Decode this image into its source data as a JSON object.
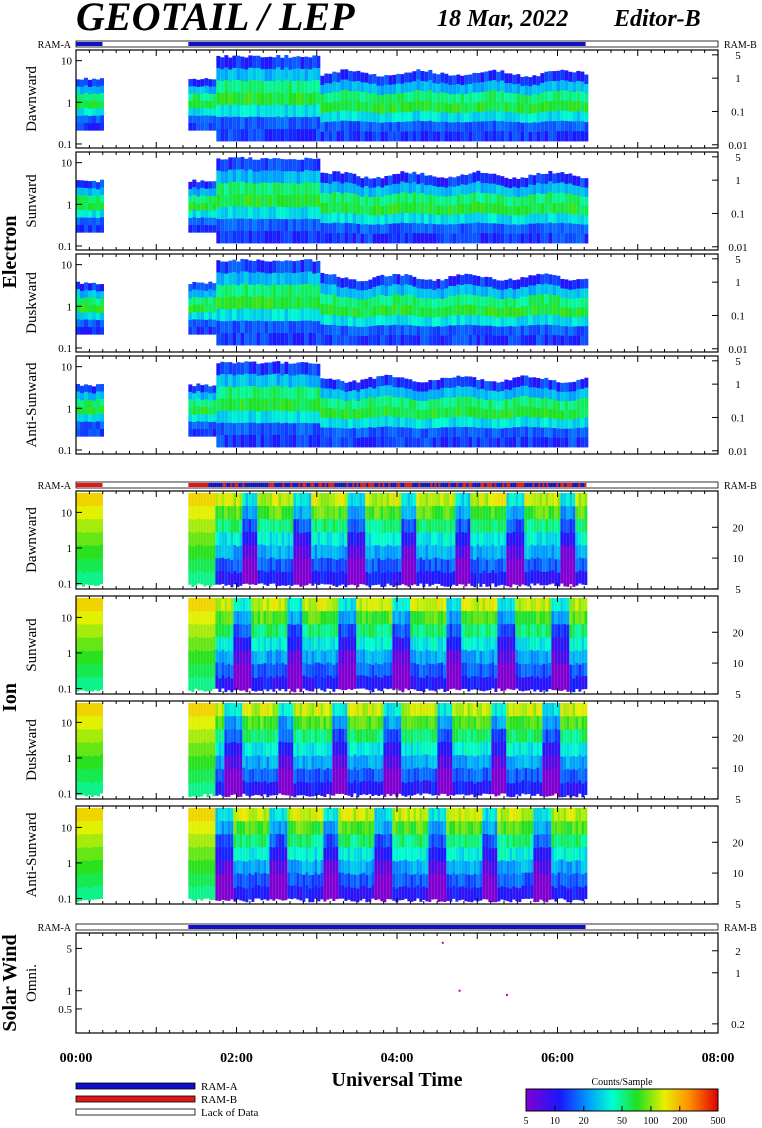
{
  "header": {
    "title": "GEOTAIL / LEP",
    "date": "18 Mar, 2022",
    "editor": "Editor-B"
  },
  "colors": {
    "ram_a": "#1010c8",
    "ram_b": "#e01818",
    "lack_of_data": "#ffffff",
    "point": "#c000c0",
    "frame": "#000000"
  },
  "chart_data": {
    "type": "heatmap",
    "x_axis": {
      "label": "Universal Time",
      "range_hours": [
        0,
        8
      ],
      "tick_labels": [
        "00:00",
        "02:00",
        "04:00",
        "06:00",
        "08:00"
      ],
      "tick_hours": [
        0,
        2,
        4,
        6,
        8
      ],
      "minor_ticks_per_hour": 6
    },
    "data_segments_hours": [
      [
        0.0,
        0.33
      ],
      [
        1.4,
        6.35
      ]
    ],
    "groups": [
      {
        "name": "Electron",
        "mode_bar": {
          "left_label": "RAM-A",
          "right_label": "RAM-B",
          "segments": [
            {
              "start": 0.0,
              "end": 0.33,
              "mode": "ram_a"
            },
            {
              "start": 0.33,
              "end": 1.4,
              "mode": "lack_of_data"
            },
            {
              "start": 1.4,
              "end": 6.35,
              "mode": "ram_a"
            },
            {
              "start": 6.35,
              "end": 8.0,
              "mode": "lack_of_data"
            }
          ]
        },
        "panels": [
          {
            "label": "Dawnward",
            "left_ticks": [
              "10",
              "1",
              "0.1"
            ],
            "left_log": [
              1,
              0,
              -1
            ],
            "left_range": [
              0.08,
              18
            ],
            "right_ticks": [
              "5",
              "1",
              "0.1",
              "0.01"
            ],
            "right_log": [
              0.7,
              0,
              -1,
              -2
            ],
            "right_range": [
              0.008,
              7
            ]
          },
          {
            "label": "Sunward",
            "left_ticks": [
              "10",
              "1",
              "0.1"
            ],
            "left_log": [
              1,
              0,
              -1
            ],
            "left_range": [
              0.08,
              18
            ],
            "right_ticks": [
              "5",
              "1",
              "0.1",
              "0.01"
            ],
            "right_log": [
              0.7,
              0,
              -1,
              -2
            ],
            "right_range": [
              0.008,
              7
            ]
          },
          {
            "label": "Duskward",
            "left_ticks": [
              "10",
              "1",
              "0.1"
            ],
            "left_log": [
              1,
              0,
              -1
            ],
            "left_range": [
              0.08,
              18
            ],
            "right_ticks": [
              "5",
              "1",
              "0.1",
              "0.01"
            ],
            "right_log": [
              0.7,
              0,
              -1,
              -2
            ],
            "right_range": [
              0.008,
              7
            ]
          },
          {
            "label": "Anti-Sunward",
            "left_ticks": [
              "10",
              "1",
              "0.1"
            ],
            "left_log": [
              1,
              0,
              -1
            ],
            "left_range": [
              0.08,
              18
            ],
            "right_ticks": [
              "5",
              "1",
              "0.1",
              "0.01"
            ],
            "right_log": [
              0.7,
              0,
              -1,
              -2
            ],
            "right_range": [
              0.008,
              7
            ]
          }
        ]
      },
      {
        "name": "Ion",
        "mode_bar": {
          "left_label": "RAM-A",
          "right_label": "RAM-B",
          "segments": [
            {
              "start": 0.0,
              "end": 0.33,
              "mode": "ram_b"
            },
            {
              "start": 0.33,
              "end": 1.4,
              "mode": "lack_of_data"
            },
            {
              "start": 1.4,
              "end": 1.65,
              "mode": "ram_b"
            },
            {
              "start": 1.65,
              "end": 6.35,
              "mode": "mixed"
            },
            {
              "start": 6.35,
              "end": 8.0,
              "mode": "lack_of_data"
            }
          ]
        },
        "panels": [
          {
            "label": "Dawnward",
            "left_ticks": [
              "10",
              "1",
              "0.1"
            ],
            "left_log": [
              1,
              0,
              -1
            ],
            "left_range": [
              0.07,
              40
            ],
            "right_ticks": [
              "20",
              "10",
              "5"
            ],
            "right_log": [
              1.3,
              1,
              0.7
            ],
            "right_range": [
              5,
              45
            ]
          },
          {
            "label": "Sunward",
            "left_ticks": [
              "10",
              "1",
              "0.1"
            ],
            "left_log": [
              1,
              0,
              -1
            ],
            "left_range": [
              0.07,
              40
            ],
            "right_ticks": [
              "20",
              "10",
              "5"
            ],
            "right_log": [
              1.3,
              1,
              0.7
            ],
            "right_range": [
              5,
              45
            ]
          },
          {
            "label": "Duskward",
            "left_ticks": [
              "10",
              "1",
              "0.1"
            ],
            "left_log": [
              1,
              0,
              -1
            ],
            "left_range": [
              0.07,
              40
            ],
            "right_ticks": [
              "20",
              "10",
              "5"
            ],
            "right_log": [
              1.3,
              1,
              0.7
            ],
            "right_range": [
              5,
              45
            ]
          },
          {
            "label": "Anti-Sunward",
            "left_ticks": [
              "10",
              "1",
              "0.1"
            ],
            "left_log": [
              1,
              0,
              -1
            ],
            "left_range": [
              0.07,
              40
            ],
            "right_ticks": [
              "20",
              "10",
              "5"
            ],
            "right_log": [
              1.3,
              1,
              0.7
            ],
            "right_range": [
              5,
              45
            ]
          }
        ]
      },
      {
        "name": "Solar Wind",
        "mode_bar": {
          "left_label": "RAM-A",
          "right_label": "RAM-B",
          "segments": [
            {
              "start": 0.0,
              "end": 1.4,
              "mode": "lack_of_data"
            },
            {
              "start": 1.4,
              "end": 6.35,
              "mode": "ram_a"
            },
            {
              "start": 6.35,
              "end": 8.0,
              "mode": "lack_of_data"
            }
          ]
        },
        "panels": [
          {
            "label": "Omni.",
            "left_ticks": [
              "5",
              "1",
              "0.5"
            ],
            "left_log": [
              0.699,
              0,
              -0.301
            ],
            "left_range": [
              0.2,
              9
            ],
            "right_ticks": [
              "2",
              "1",
              "0.2"
            ],
            "right_log": [
              0.301,
              0,
              -0.699
            ],
            "right_range": [
              0.15,
              3.5
            ],
            "points": [
              {
                "x_hours": 4.57,
                "y": 6.2
              },
              {
                "x_hours": 4.78,
                "y": 1.0
              },
              {
                "x_hours": 5.37,
                "y": 0.85
              }
            ]
          }
        ]
      }
    ],
    "legend": {
      "items": [
        {
          "label": "RAM-A",
          "mode": "ram_a"
        },
        {
          "label": "RAM-B",
          "mode": "ram_b"
        },
        {
          "label": "Lack of Data",
          "mode": "lack_of_data"
        }
      ]
    },
    "colorbar": {
      "title": "Counts/Sample",
      "scale": "log",
      "range": [
        5,
        500
      ],
      "tick_labels": [
        "5",
        "10",
        "20",
        "50",
        "100",
        "200",
        "500"
      ],
      "tick_values": [
        5,
        10,
        20,
        50,
        100,
        200,
        500
      ]
    }
  }
}
